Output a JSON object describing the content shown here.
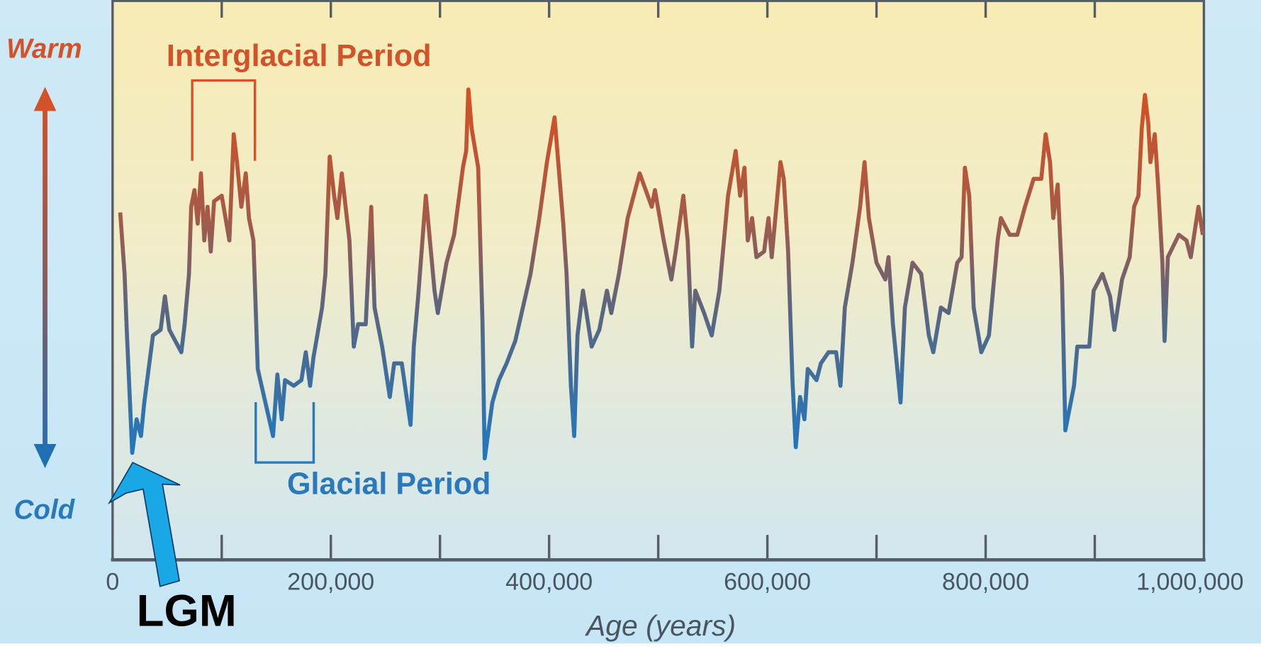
{
  "chart_data": {
    "type": "line",
    "title": "",
    "xlabel": "Age (years)",
    "ylabel_top": "Warm",
    "ylabel_bottom": "Cold",
    "xlim": [
      0,
      1000000
    ],
    "ylim": [
      0,
      100
    ],
    "y_units": "relative temperature (0 = cold, 100 = warm)",
    "x_ticks": [
      0,
      200000,
      400000,
      600000,
      800000,
      1000000
    ],
    "x_tick_labels": [
      "0",
      "200,000",
      "400,000",
      "600,000",
      "800,000",
      "1,000,000"
    ],
    "grid": false,
    "annotations": {
      "interglacial": "Interglacial Period",
      "glacial": "Glacial Period",
      "lgm": "LGM"
    },
    "colors": {
      "warm": "#d2532a",
      "cold": "#2a79bb",
      "lgm_arrow": "#1aa7e6"
    },
    "series": [
      {
        "name": "temperature",
        "age_kyr": [
          7,
          11,
          13,
          15,
          18,
          22,
          26,
          29,
          33,
          37,
          44,
          48,
          52,
          63,
          66,
          70,
          72,
          75,
          78,
          81,
          84,
          87,
          90,
          93,
          100,
          107,
          111,
          114,
          118,
          122,
          125,
          129,
          133,
          140,
          147,
          151,
          155,
          158,
          166,
          173,
          177,
          181,
          184,
          192,
          195,
          199,
          203,
          206,
          210,
          217,
          221,
          225,
          232,
          237,
          240,
          247,
          254,
          258,
          265,
          273,
          276,
          280,
          287,
          295,
          298,
          306,
          313,
          321,
          324,
          326,
          329,
          335,
          339,
          341,
          348,
          354,
          361,
          369,
          376,
          383,
          391,
          398,
          405,
          413,
          416,
          420,
          423,
          426,
          431,
          439,
          446,
          453,
          457,
          464,
          472,
          483,
          494,
          497,
          505,
          512,
          516,
          523,
          527,
          531,
          534,
          542,
          549,
          556,
          564,
          571,
          575,
          579,
          582,
          586,
          590,
          597,
          601,
          604,
          612,
          615,
          619,
          623,
          626,
          630,
          634,
          637,
          645,
          649,
          656,
          663,
          667,
          671,
          678,
          685,
          689,
          693,
          700,
          708,
          711,
          715,
          722,
          726,
          733,
          741,
          748,
          752,
          759,
          766,
          774,
          778,
          781,
          785,
          789,
          796,
          803,
          811,
          814,
          822,
          829,
          836,
          844,
          851,
          855,
          859,
          862,
          866,
          870,
          873,
          881,
          884,
          895,
          899,
          907,
          914,
          918,
          925,
          932,
          936,
          940,
          943,
          946,
          949,
          951,
          955,
          958,
          962,
          964,
          967,
          977,
          984,
          988,
          995,
          999
        ],
        "values": [
          62,
          51,
          41,
          32,
          19,
          25,
          22,
          28,
          34,
          40,
          41,
          47,
          41,
          37,
          42,
          51,
          63,
          66,
          60,
          69,
          57,
          63,
          55,
          64,
          65,
          57,
          76,
          71,
          63,
          69,
          61,
          57,
          34,
          28,
          22,
          33,
          25,
          32,
          31,
          32,
          37,
          31,
          36,
          45,
          51,
          72,
          65,
          61,
          69,
          57,
          38,
          42,
          42,
          63,
          45,
          38,
          29,
          35,
          35,
          24,
          38,
          47,
          65,
          48,
          44,
          53,
          58,
          70,
          73,
          84,
          77,
          70,
          42,
          18,
          28,
          32,
          35,
          39,
          45,
          51,
          61,
          71,
          79,
          60,
          51,
          31,
          22,
          40,
          48,
          38,
          41,
          48,
          44,
          51,
          61,
          69,
          63,
          66,
          57,
          50,
          55,
          65,
          57,
          38,
          48,
          44,
          40,
          48,
          65,
          73,
          65,
          70,
          57,
          61,
          54,
          55,
          61,
          54,
          71,
          68,
          55,
          32,
          20,
          29,
          25,
          34,
          32,
          35,
          37,
          37,
          31,
          45,
          53,
          63,
          71,
          61,
          53,
          50,
          54,
          42,
          28,
          45,
          53,
          51,
          40,
          37,
          45,
          44,
          53,
          54,
          70,
          65,
          45,
          37,
          40,
          57,
          61,
          58,
          58,
          63,
          68,
          68,
          76,
          71,
          61,
          67,
          50,
          23,
          31,
          38,
          38,
          48,
          51,
          47,
          41,
          50,
          54,
          63,
          65,
          77,
          83,
          78,
          71,
          76,
          67,
          53,
          39,
          54,
          58,
          57,
          54,
          63,
          58
        ]
      }
    ]
  }
}
